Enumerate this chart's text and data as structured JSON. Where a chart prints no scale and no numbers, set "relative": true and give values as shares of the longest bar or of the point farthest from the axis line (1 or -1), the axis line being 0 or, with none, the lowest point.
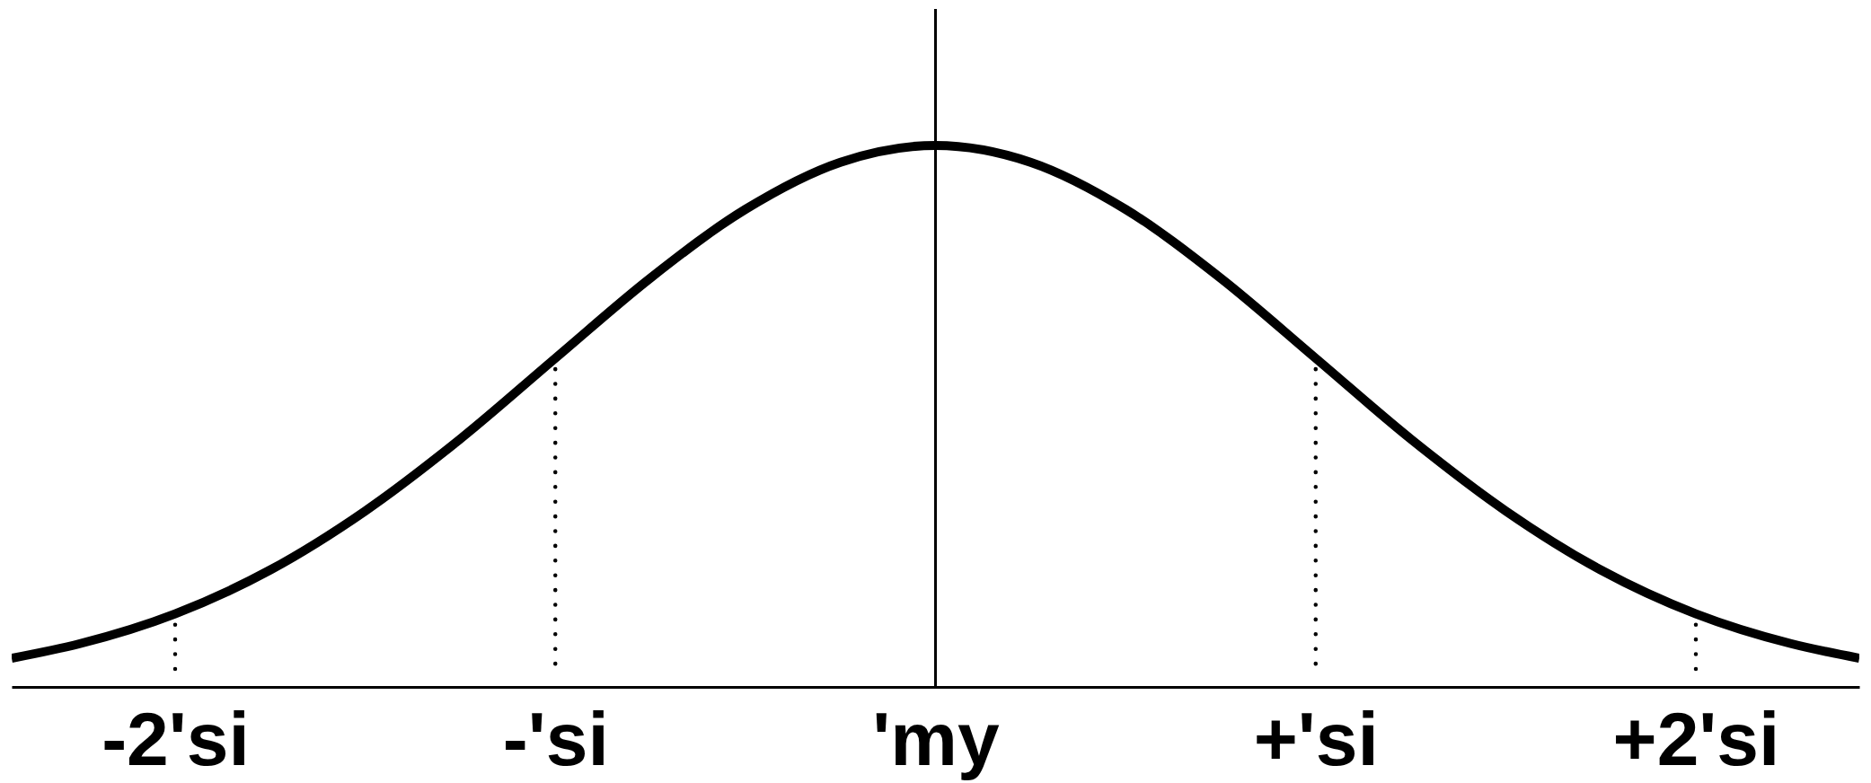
{
  "chart_data": {
    "type": "line",
    "relative": true,
    "x": [
      -2.43,
      -2.25,
      -2,
      -1.75,
      -1.5,
      -1.25,
      -1,
      -0.75,
      -0.5,
      -0.25,
      0,
      0.25,
      0.5,
      0.75,
      1,
      1.25,
      1.5,
      1.75,
      2,
      2.25,
      2.43
    ],
    "xlim": [
      -2.43,
      2.43
    ],
    "xticks": [
      {
        "value": -2,
        "label": "-2'si"
      },
      {
        "value": -1,
        "label": "-'si"
      },
      {
        "value": 0,
        "label": "'my"
      },
      {
        "value": 1,
        "label": "+'si"
      },
      {
        "value": 2,
        "label": "+2'si"
      }
    ],
    "series": [
      {
        "color": "#000000",
        "values": [
          0.053,
          0.08,
          0.135,
          0.216,
          0.325,
          0.458,
          0.607,
          0.755,
          0.882,
          0.969,
          1,
          0.969,
          0.882,
          0.755,
          0.607,
          0.458,
          0.325,
          0.216,
          0.135,
          0.08,
          0.053
        ]
      }
    ],
    "ref_lines": [
      {
        "axis": "x",
        "value": 0,
        "color": "#000000",
        "line_style": "solid"
      },
      {
        "axis": "x",
        "value": -2,
        "color": "#000000",
        "line_style": "dotted"
      },
      {
        "axis": "x",
        "value": -1,
        "color": "#000000",
        "line_style": "dotted"
      },
      {
        "axis": "x",
        "value": 1,
        "color": "#000000",
        "line_style": "dotted"
      },
      {
        "axis": "x",
        "value": 2,
        "color": "#000000",
        "line_style": "dotted"
      }
    ]
  }
}
